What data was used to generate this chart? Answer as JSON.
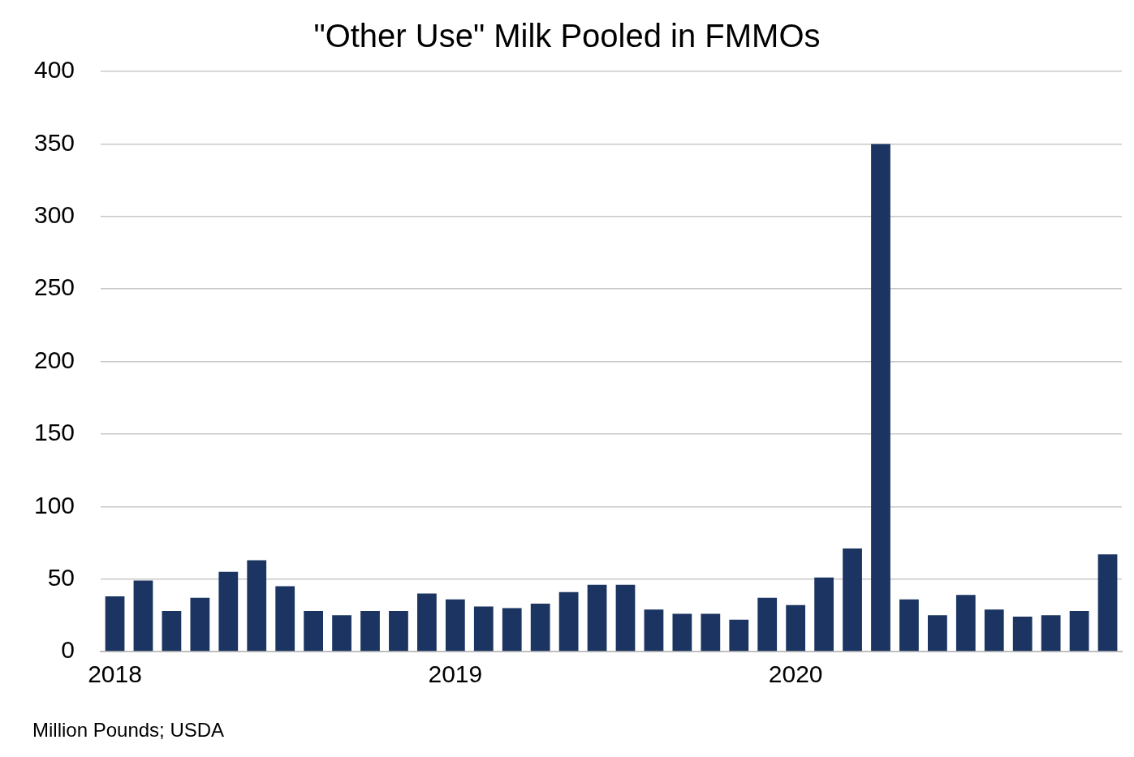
{
  "chart_data": {
    "type": "bar",
    "title": "\"Other Use\" Milk Pooled in FMMOs",
    "categories": [
      "2018",
      null,
      null,
      null,
      null,
      null,
      null,
      null,
      null,
      null,
      null,
      null,
      "2019",
      null,
      null,
      null,
      null,
      null,
      null,
      null,
      null,
      null,
      null,
      null,
      "2020",
      null,
      null,
      null,
      null,
      null,
      null,
      null,
      null,
      null,
      null,
      null
    ],
    "values": [
      38,
      49,
      28,
      37,
      55,
      63,
      45,
      28,
      25,
      28,
      28,
      40,
      36,
      31,
      30,
      33,
      41,
      46,
      46,
      29,
      26,
      26,
      22,
      37,
      32,
      51,
      71,
      350,
      36,
      25,
      39,
      29,
      24,
      25,
      28,
      67
    ],
    "color": "#1b3461",
    "ylim": [
      0,
      400
    ],
    "yticks": [
      0,
      50,
      100,
      150,
      200,
      250,
      300,
      350,
      400
    ],
    "grid": "y",
    "legend": false,
    "annotations": [
      "Million Pounds; USDA"
    ]
  }
}
